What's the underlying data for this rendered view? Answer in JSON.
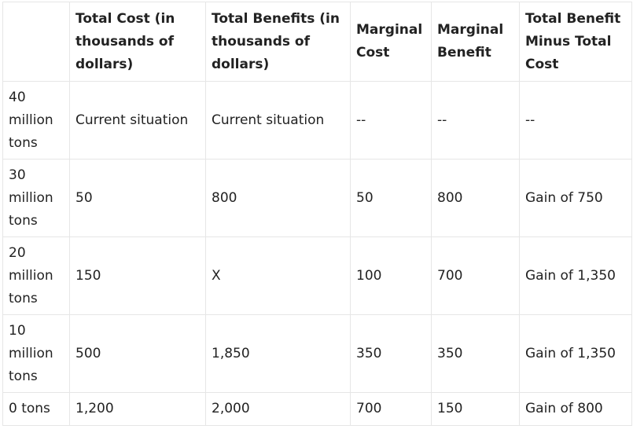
{
  "table": {
    "headers": [
      "",
      "Total Cost (in thousands of dollars)",
      "Total Benefits (in thousands of dollars)",
      "Marginal Cost",
      "Marginal Benefit",
      "Total Benefit Minus Total Cost"
    ],
    "rows": [
      [
        "40 million tons",
        "Current situation",
        "Current situation",
        "--",
        "--",
        "--"
      ],
      [
        "30 million tons",
        "50",
        "800",
        "50",
        "800",
        "Gain of 750"
      ],
      [
        "20 million tons",
        "150",
        "X",
        "100",
        "700",
        "Gain of 1,350"
      ],
      [
        "10 million tons",
        "500",
        "1,850",
        "350",
        "350",
        "Gain of 1,350"
      ],
      [
        "0 tons",
        "1,200",
        "2,000",
        "700",
        "150",
        "Gain of 800"
      ]
    ]
  }
}
